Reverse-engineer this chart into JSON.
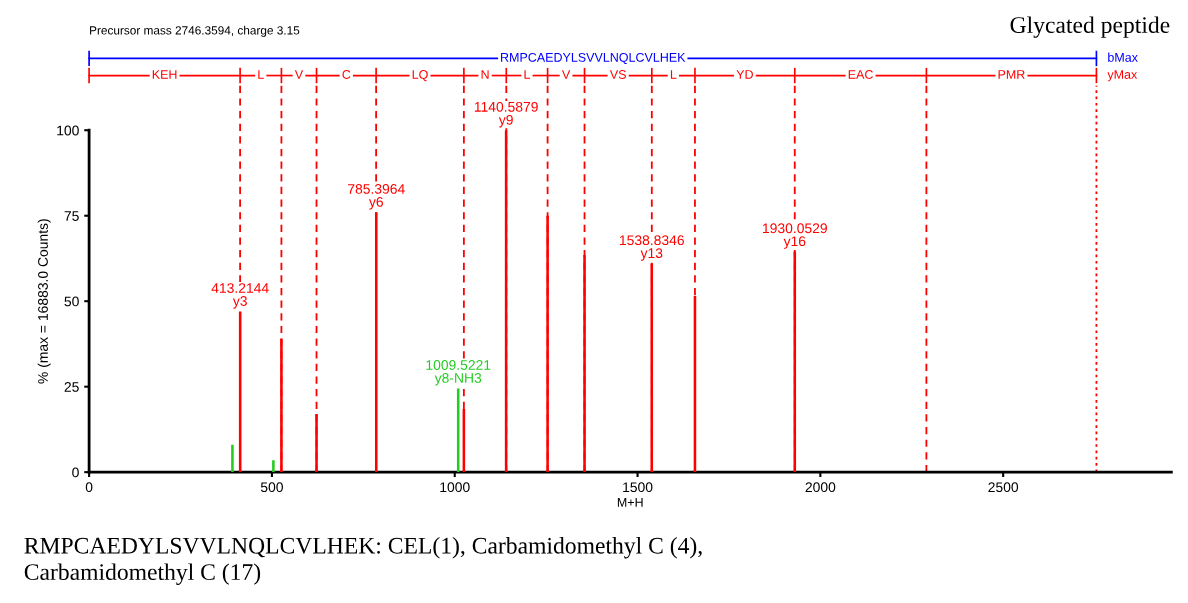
{
  "chart_data": {
    "type": "bar",
    "title": "Glycated peptide",
    "subtitle": "Precursor mass 2746.3594, charge 3.15",
    "xlabel": "M+H",
    "ylabel": "% (max = 16883.0 Counts)",
    "xlim": [
      0,
      2960
    ],
    "xticks": [
      0,
      500,
      1000,
      1500,
      2000,
      2500
    ],
    "ylim": [
      0,
      100
    ],
    "yticks": [
      0,
      25,
      50,
      75,
      100
    ],
    "series": [
      {
        "color": "#ff0000",
        "x": [
          413.2144,
          526,
          622,
          785.3964,
          1025,
          1140.5879,
          1254,
          1355,
          1538.8346,
          1657,
          1930.0529
        ],
        "values": [
          47,
          39,
          17,
          76,
          18.5,
          100,
          75,
          63.5,
          61,
          51.5,
          64.5
        ]
      },
      {
        "color": "#22cc22",
        "x": [
          392,
          504,
          1009.5221
        ],
        "values": [
          8,
          3.5,
          24.5
        ]
      }
    ],
    "ref_lines": [
      {
        "axis": "x",
        "value": 413,
        "color": "#ff0000",
        "line_style": "dashed"
      },
      {
        "axis": "x",
        "value": 526,
        "color": "#ff0000",
        "line_style": "dashed"
      },
      {
        "axis": "x",
        "value": 622,
        "color": "#ff0000",
        "line_style": "dashed"
      },
      {
        "axis": "x",
        "value": 785,
        "color": "#ff0000",
        "line_style": "dashed"
      },
      {
        "axis": "x",
        "value": 1025,
        "color": "#ff0000",
        "line_style": "dashed"
      },
      {
        "axis": "x",
        "value": 1141,
        "color": "#ff0000",
        "line_style": "dashed"
      },
      {
        "axis": "x",
        "value": 1254,
        "color": "#ff0000",
        "line_style": "dashed"
      },
      {
        "axis": "x",
        "value": 1355,
        "color": "#ff0000",
        "line_style": "dashed"
      },
      {
        "axis": "x",
        "value": 1539,
        "color": "#ff0000",
        "line_style": "dashed"
      },
      {
        "axis": "x",
        "value": 1657,
        "color": "#ff0000",
        "line_style": "dashed"
      },
      {
        "axis": "x",
        "value": 1930,
        "color": "#ff0000",
        "line_style": "dashed"
      },
      {
        "axis": "x",
        "value": 2290,
        "color": "#ff0000",
        "line_style": "dashed"
      },
      {
        "axis": "x",
        "value": 2755,
        "color": "#ff0000",
        "line_style": "dotted"
      }
    ],
    "annotations": [
      "RMPCAEDYLSVVLNQLCVLHEK: CEL(1), Carbamidomethyl C (4),\nCarbamidomethyl C (17)",
      "RMPCAEDYLSVVLNQLCVLHEK",
      "bMax",
      "yMax",
      "KEH",
      "L",
      "V",
      "C",
      "LQ",
      "N",
      "L",
      "V",
      "VS",
      "L",
      "YD",
      "EAC",
      "PMR",
      {
        "text": "413.2144\ny3",
        "x": 413.2144,
        "y": 47
      },
      {
        "text": "785.3964\ny6",
        "x": 785.3964,
        "y": 76
      },
      {
        "text": "1140.5879\ny9",
        "x": 1140.5879,
        "y": 100
      },
      {
        "text": "1538.8346\ny13",
        "x": 1538.8346,
        "y": 61
      },
      {
        "text": "1930.0529\ny16",
        "x": 1930.0529,
        "y": 64.5
      },
      {
        "text": "1009.5221\ny8-NH3",
        "x": 1009.5221,
        "y": 24.5
      }
    ],
    "grid": false,
    "legend": false
  }
}
